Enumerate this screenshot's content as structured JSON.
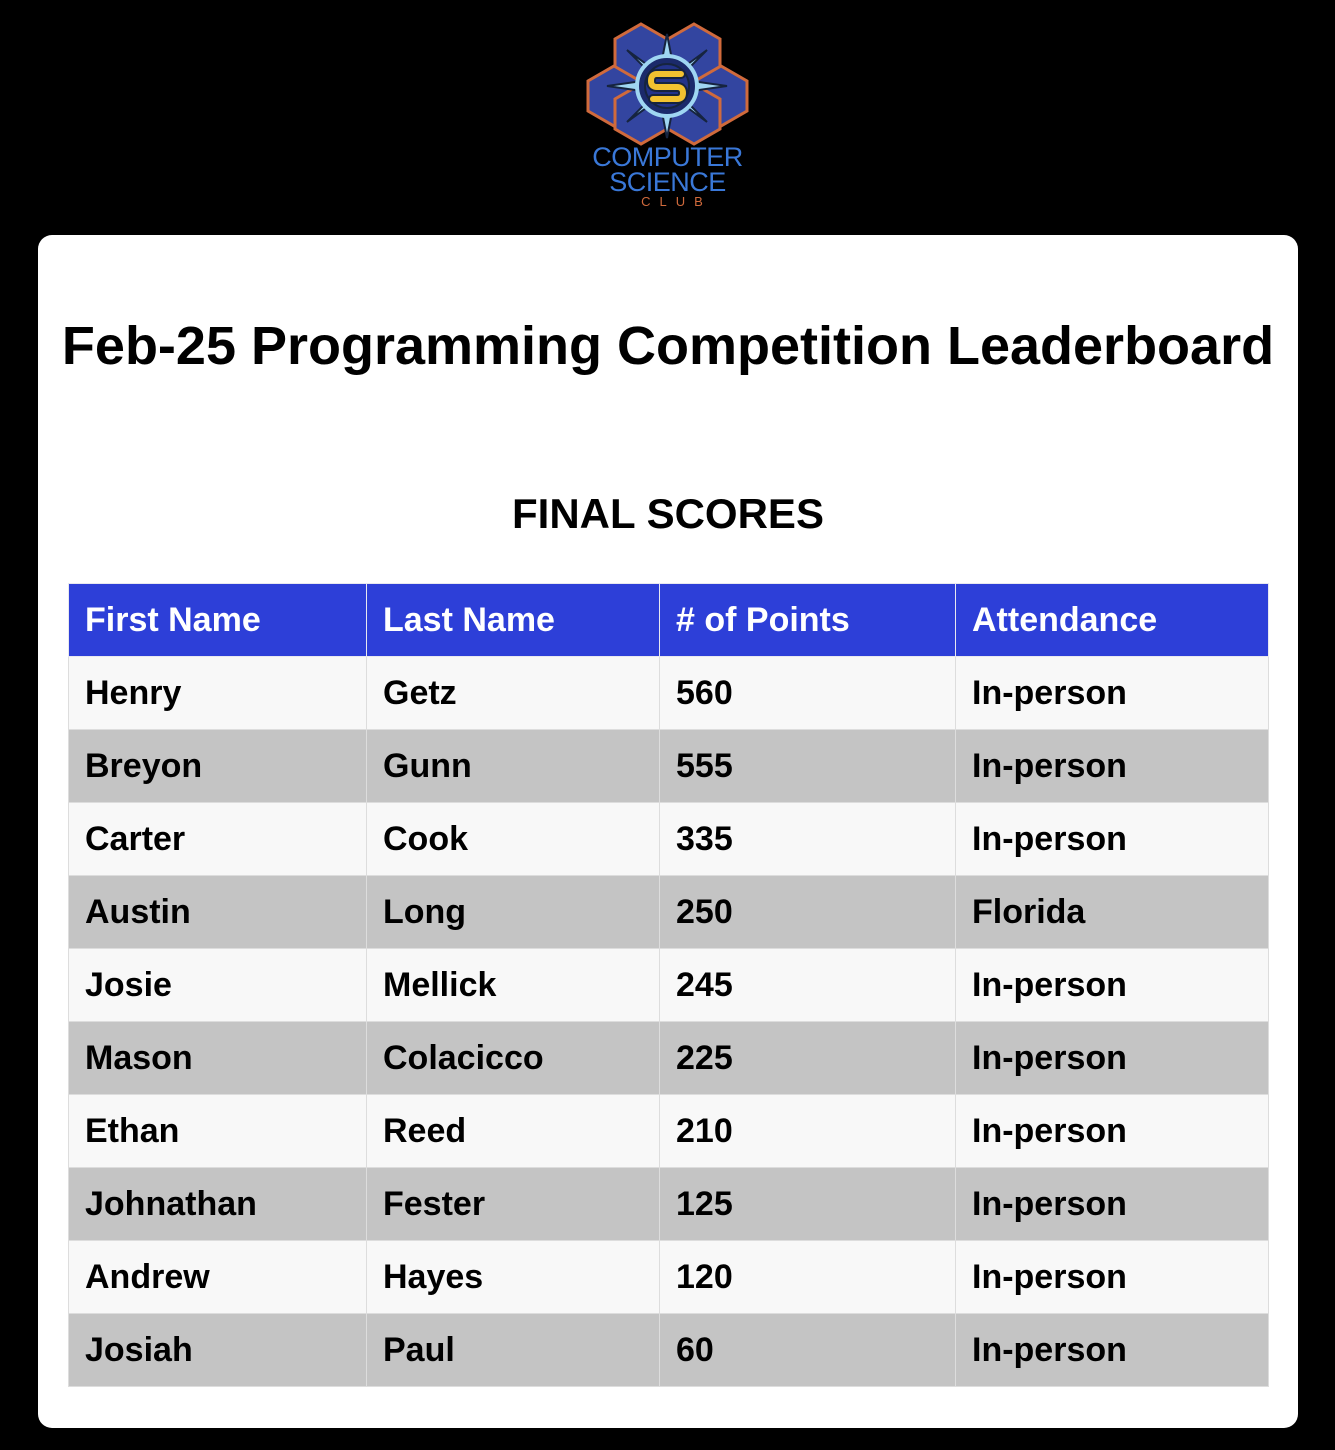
{
  "logo": {
    "icon": "computer-science-club-gear-logo",
    "line1": "COMPUTER",
    "line2": "SCIENCE",
    "line3": "CLUB"
  },
  "title": "Feb-25 Programming Competition Leaderboard",
  "subtitle": "FINAL SCORES",
  "table": {
    "columns": [
      "First Name",
      "Last Name",
      "# of Points",
      "Attendance"
    ],
    "rows": [
      [
        "Henry",
        "Getz",
        "560",
        "In-person"
      ],
      [
        "Breyon",
        "Gunn",
        "555",
        "In-person"
      ],
      [
        "Carter",
        "Cook",
        "335",
        "In-person"
      ],
      [
        "Austin",
        "Long",
        "250",
        "Florida"
      ],
      [
        "Josie",
        "Mellick",
        "245",
        "In-person"
      ],
      [
        "Mason",
        "Colacicco",
        "225",
        "In-person"
      ],
      [
        "Ethan",
        "Reed",
        "210",
        "In-person"
      ],
      [
        "Johnathan",
        "Fester",
        "125",
        "In-person"
      ],
      [
        "Andrew",
        "Hayes",
        "120",
        "In-person"
      ],
      [
        "Josiah",
        "Paul",
        "60",
        "In-person"
      ]
    ]
  },
  "colors": {
    "background": "#000000",
    "card": "#ffffff",
    "header": "#2d3fd8",
    "row_light": "#f8f8f8",
    "row_dark": "#c4c4c4",
    "logo_blue": "#3a78d8",
    "logo_orange": "#d06a3c",
    "logo_yellow": "#f2c230"
  }
}
